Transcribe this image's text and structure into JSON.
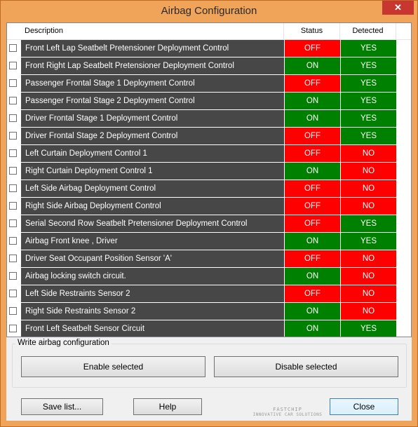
{
  "window": {
    "title": "Airbag Configuration",
    "close_glyph": "✕"
  },
  "table": {
    "headers": {
      "description": "Description",
      "status": "Status",
      "detected": "Detected"
    },
    "rows": [
      {
        "label": "Front Left Lap Seatbelt Pretensioner Deployment Control",
        "status": "OFF",
        "detected": "YES"
      },
      {
        "label": "Front Right Lap Seatbelt Pretensioner Deployment Control",
        "status": "ON",
        "detected": "YES"
      },
      {
        "label": "Passenger Frontal Stage 1 Deployment Control",
        "status": "OFF",
        "detected": "YES"
      },
      {
        "label": "Passenger Frontal Stage 2 Deployment Control",
        "status": "ON",
        "detected": "YES"
      },
      {
        "label": "Driver Frontal Stage 1 Deployment Control",
        "status": "ON",
        "detected": "YES"
      },
      {
        "label": "Driver Frontal Stage 2 Deployment Control",
        "status": "OFF",
        "detected": "YES"
      },
      {
        "label": "Left Curtain Deployment Control 1",
        "status": "OFF",
        "detected": "NO"
      },
      {
        "label": "Right Curtain Deployment Control 1",
        "status": "ON",
        "detected": "NO"
      },
      {
        "label": "Left Side Airbag Deployment Control",
        "status": "OFF",
        "detected": "NO"
      },
      {
        "label": "Right Side Airbag Deployment Control",
        "status": "OFF",
        "detected": "NO"
      },
      {
        "label": "Serial Second Row Seatbelt Pretensioner Deployment Control",
        "status": "OFF",
        "detected": "YES"
      },
      {
        "label": "Airbag Front knee , Driver",
        "status": "ON",
        "detected": "YES"
      },
      {
        "label": "Driver Seat Occupant Position Sensor 'A'",
        "status": "OFF",
        "detected": "NO"
      },
      {
        "label": "Airbag locking switch circuit.",
        "status": "ON",
        "detected": "NO"
      },
      {
        "label": "Left Side Restraints Sensor 2",
        "status": "OFF",
        "detected": "NO"
      },
      {
        "label": "Right Side Restraints Sensor 2",
        "status": "ON",
        "detected": "NO"
      },
      {
        "label": "Front Left Seatbelt Sensor Circuit",
        "status": "ON",
        "detected": "YES"
      }
    ]
  },
  "colors": {
    "on": "#008000",
    "off": "#fe0000",
    "yes": "#008000",
    "no": "#fe0000",
    "description_bg": "#474747"
  },
  "write_group": {
    "label": "Write airbag configuration",
    "enable_label": "Enable selected",
    "disable_label": "Disable selected"
  },
  "footer": {
    "save_label": "Save list...",
    "help_label": "Help",
    "close_label": "Close",
    "logo_line1": "FASTCHIP",
    "logo_line2": "INNOVATIVE CAR SOLUTIONS"
  }
}
